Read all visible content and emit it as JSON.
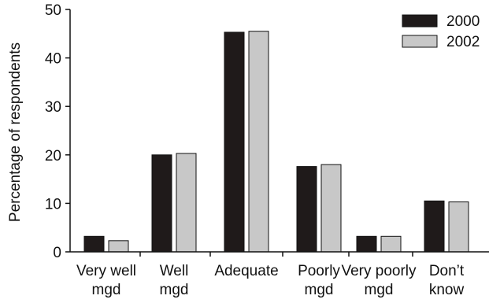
{
  "chart_data": {
    "type": "bar",
    "categories": [
      [
        "Very well",
        "mgd"
      ],
      [
        "Well",
        "mgd"
      ],
      [
        "Adequate"
      ],
      [
        "Poorly",
        "mgd"
      ],
      [
        "Very poorly",
        "mgd"
      ],
      [
        "Don’t",
        "know"
      ]
    ],
    "series": [
      {
        "name": "2000",
        "color": "#1f1a1a",
        "values": [
          3.2,
          20.0,
          45.3,
          17.6,
          3.2,
          10.5
        ]
      },
      {
        "name": "2002",
        "color": "#c8c8c8",
        "values": [
          2.3,
          20.3,
          45.5,
          18.0,
          3.2,
          10.3
        ]
      }
    ],
    "title": "",
    "xlabel": "",
    "ylabel": "Percentage of respondents",
    "ylim": [
      0,
      50
    ],
    "yticks": [
      "0",
      "10",
      "20",
      "30",
      "40",
      "50"
    ],
    "grid": false,
    "legend_position": "top-right"
  }
}
